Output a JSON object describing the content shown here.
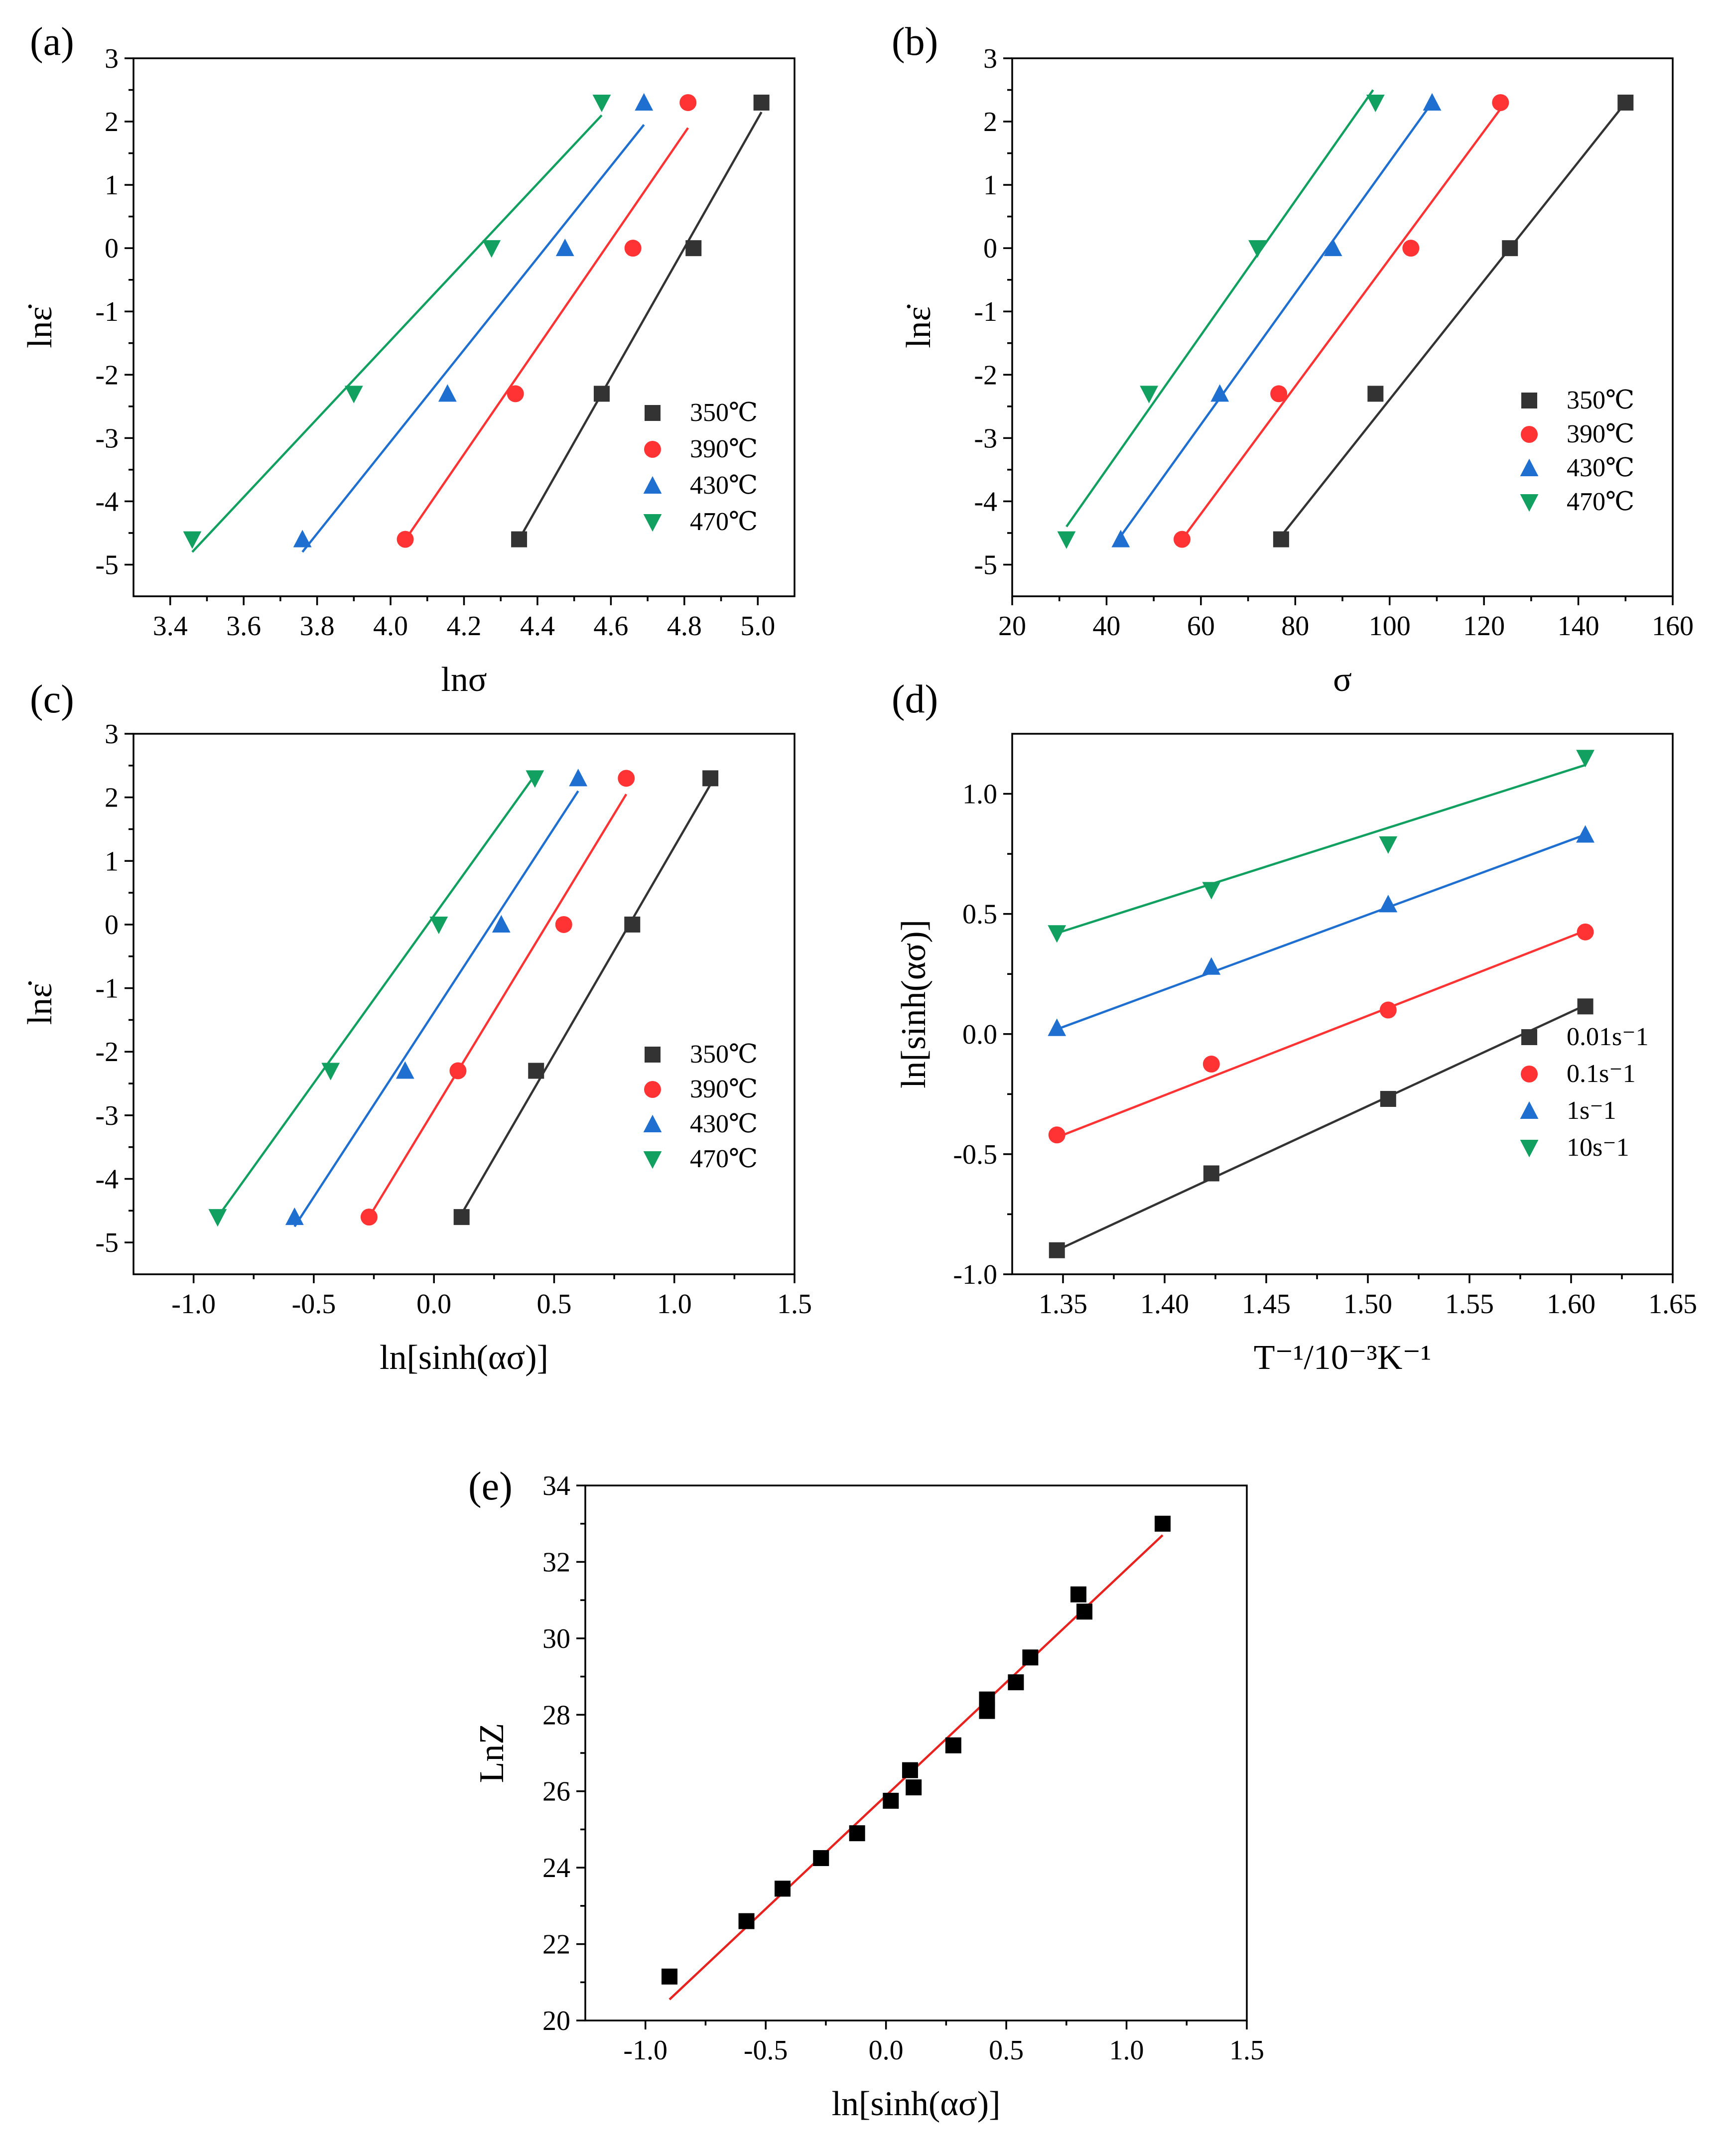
{
  "chart_data": [
    {
      "id": "a",
      "panel_label": "(a)",
      "type": "scatter",
      "xlabel": "lnσ",
      "ylabel": "lnε̇",
      "xlim": [
        3.3,
        5.1
      ],
      "ylim": [
        -5.5,
        3
      ],
      "xticks": [
        3.4,
        3.6,
        3.8,
        4.0,
        4.2,
        4.4,
        4.6,
        4.8,
        5.0
      ],
      "xtick_labels": [
        "3.4",
        "3.6",
        "3.8",
        "4.0",
        "4.2",
        "4.4",
        "4.6",
        "4.8",
        "5.0"
      ],
      "yticks": [
        -5,
        -4,
        -3,
        -2,
        -1,
        0,
        1,
        2,
        3
      ],
      "ytick_labels": [
        "-5",
        "-4",
        "-3",
        "-2",
        "-1",
        "0",
        "1",
        "2",
        "3"
      ],
      "legend_position": "lower-right",
      "series": [
        {
          "name": "350℃",
          "color": "#333333",
          "marker": "square",
          "x": [
            4.35,
            4.575,
            4.825,
            5.01
          ],
          "y": [
            -4.6,
            -2.3,
            0,
            2.3
          ],
          "fit": [
            [
              4.35,
              -4.6
            ],
            [
              5.01,
              2.15
            ]
          ]
        },
        {
          "name": "390℃",
          "color": "#ff3333",
          "marker": "circle",
          "x": [
            4.04,
            4.34,
            4.66,
            4.81
          ],
          "y": [
            -4.6,
            -2.3,
            0,
            2.3
          ],
          "fit": [
            [
              4.035,
              -4.65
            ],
            [
              4.81,
              1.9
            ]
          ]
        },
        {
          "name": "430℃",
          "color": "#1f6fd1",
          "marker": "triangle-up",
          "x": [
            3.76,
            4.155,
            4.475,
            4.69
          ],
          "y": [
            -4.6,
            -2.3,
            0,
            2.3
          ],
          "fit": [
            [
              3.76,
              -4.8
            ],
            [
              4.69,
              1.95
            ]
          ]
        },
        {
          "name": "470℃",
          "color": "#11a060",
          "marker": "triangle-down",
          "x": [
            3.46,
            3.9,
            4.275,
            4.575
          ],
          "y": [
            -4.6,
            -2.3,
            0,
            2.3
          ],
          "fit": [
            [
              3.46,
              -4.8
            ],
            [
              4.575,
              2.1
            ]
          ]
        }
      ]
    },
    {
      "id": "b",
      "panel_label": "(b)",
      "type": "scatter",
      "xlabel": "σ",
      "ylabel": "lnε̇",
      "xlim": [
        20,
        160
      ],
      "ylim": [
        -5.5,
        3
      ],
      "xticks": [
        20,
        40,
        60,
        80,
        100,
        120,
        140,
        160
      ],
      "xtick_labels": [
        "20",
        "40",
        "60",
        "80",
        "100",
        "120",
        "140",
        "160"
      ],
      "yticks": [
        -5,
        -4,
        -3,
        -2,
        -1,
        0,
        1,
        2,
        3
      ],
      "ytick_labels": [
        "-5",
        "-4",
        "-3",
        "-2",
        "-1",
        "0",
        "1",
        "2",
        "3"
      ],
      "legend_position": "lower-right",
      "series": [
        {
          "name": "350℃",
          "color": "#333333",
          "marker": "square",
          "x": [
            77,
            97,
            125.5,
            150
          ],
          "y": [
            -4.6,
            -2.3,
            0,
            2.3
          ],
          "fit": [
            [
              77,
              -4.55
            ],
            [
              150,
              2.3
            ]
          ]
        },
        {
          "name": "390℃",
          "color": "#ff3333",
          "marker": "circle",
          "x": [
            56,
            76.5,
            104.5,
            123.5
          ],
          "y": [
            -4.6,
            -2.3,
            0,
            2.3
          ],
          "fit": [
            [
              56,
              -4.6
            ],
            [
              123.5,
              2.2
            ]
          ]
        },
        {
          "name": "430℃",
          "color": "#1f6fd1",
          "marker": "triangle-up",
          "x": [
            43,
            64,
            88,
            109
          ],
          "y": [
            -4.6,
            -2.3,
            0,
            2.3
          ],
          "fit": [
            [
              43,
              -4.55
            ],
            [
              109,
              2.3
            ]
          ]
        },
        {
          "name": "470℃",
          "color": "#11a060",
          "marker": "triangle-down",
          "x": [
            31.5,
            49,
            72,
            97
          ],
          "y": [
            -4.6,
            -2.3,
            0,
            2.3
          ],
          "fit": [
            [
              31.5,
              -4.4
            ],
            [
              96.5,
              2.5
            ]
          ]
        }
      ]
    },
    {
      "id": "c",
      "panel_label": "(c)",
      "type": "scatter",
      "xlabel": "ln[sinh(ασ)]",
      "ylabel": "lnε̇",
      "xlim": [
        -1.25,
        1.5
      ],
      "ylim": [
        -5.5,
        3
      ],
      "xticks": [
        -1.0,
        -0.5,
        0.0,
        0.5,
        1.0,
        1.5
      ],
      "xtick_labels": [
        "-1.0",
        "-0.5",
        "0.0",
        "0.5",
        "1.0",
        "1.5"
      ],
      "yticks": [
        -5,
        -4,
        -3,
        -2,
        -1,
        0,
        1,
        2,
        3
      ],
      "ytick_labels": [
        "-5",
        "-4",
        "-3",
        "-2",
        "-1",
        "0",
        "1",
        "2",
        "3"
      ],
      "legend_position": "lower-right",
      "series": [
        {
          "name": "350℃",
          "color": "#333333",
          "marker": "square",
          "x": [
            0.115,
            0.425,
            0.825,
            1.15
          ],
          "y": [
            -4.6,
            -2.3,
            0,
            2.3
          ],
          "fit": [
            [
              0.115,
              -4.55
            ],
            [
              1.15,
              2.2
            ]
          ]
        },
        {
          "name": "390℃",
          "color": "#ff3333",
          "marker": "circle",
          "x": [
            -0.27,
            0.1,
            0.54,
            0.8
          ],
          "y": [
            -4.6,
            -2.3,
            0,
            2.3
          ],
          "fit": [
            [
              -0.27,
              -4.6
            ],
            [
              0.8,
              2.05
            ]
          ]
        },
        {
          "name": "430℃",
          "color": "#1f6fd1",
          "marker": "triangle-up",
          "x": [
            -0.58,
            -0.12,
            0.28,
            0.6
          ],
          "y": [
            -4.6,
            -2.3,
            0,
            2.3
          ],
          "fit": [
            [
              -0.58,
              -4.75
            ],
            [
              0.6,
              2.1
            ]
          ]
        },
        {
          "name": "470℃",
          "color": "#11a060",
          "marker": "triangle-down",
          "x": [
            -0.9,
            -0.43,
            0.02,
            0.42
          ],
          "y": [
            -4.6,
            -2.3,
            0,
            2.3
          ],
          "fit": [
            [
              -0.9,
              -4.6
            ],
            [
              0.42,
              2.35
            ]
          ]
        }
      ]
    },
    {
      "id": "d",
      "panel_label": "(d)",
      "type": "scatter",
      "xlabel": "T⁻¹/10⁻³K⁻¹",
      "ylabel": "ln[sinh(ασ)]",
      "xlim": [
        1.325,
        1.65
      ],
      "ylim": [
        -1.0,
        1.25
      ],
      "xticks": [
        1.35,
        1.4,
        1.45,
        1.5,
        1.55,
        1.6,
        1.65
      ],
      "xtick_labels": [
        "1.35",
        "1.40",
        "1.45",
        "1.50",
        "1.55",
        "1.60",
        "1.65"
      ],
      "yticks": [
        -1.0,
        -0.5,
        0.0,
        0.5,
        1.0
      ],
      "ytick_labels": [
        "-1.0",
        "-0.5",
        "0.0",
        "0.5",
        "1.0"
      ],
      "legend_position": "lower-right",
      "series": [
        {
          "name": "0.01s⁻1",
          "color": "#333333",
          "marker": "square",
          "x": [
            1.347,
            1.423,
            1.51,
            1.607
          ],
          "y": [
            -0.9,
            -0.58,
            -0.27,
            0.115
          ],
          "fit": [
            [
              1.347,
              -0.9
            ],
            [
              1.607,
              0.12
            ]
          ]
        },
        {
          "name": "0.1s⁻1",
          "color": "#ff3333",
          "marker": "circle",
          "x": [
            1.347,
            1.423,
            1.51,
            1.607
          ],
          "y": [
            -0.42,
            -0.125,
            0.1,
            0.425
          ],
          "fit": [
            [
              1.347,
              -0.43
            ],
            [
              1.607,
              0.43
            ]
          ]
        },
        {
          "name": "1s⁻1",
          "color": "#1f6fd1",
          "marker": "triangle-up",
          "x": [
            1.347,
            1.423,
            1.51,
            1.607
          ],
          "y": [
            0.025,
            0.28,
            0.54,
            0.83
          ],
          "fit": [
            [
              1.347,
              0.02
            ],
            [
              1.607,
              0.83
            ]
          ]
        },
        {
          "name": "10s⁻1",
          "color": "#11a060",
          "marker": "triangle-down",
          "x": [
            1.347,
            1.423,
            1.51,
            1.607
          ],
          "y": [
            0.42,
            0.6,
            0.79,
            1.15
          ],
          "fit": [
            [
              1.347,
              0.42
            ],
            [
              1.607,
              1.12
            ]
          ]
        }
      ]
    },
    {
      "id": "e",
      "panel_label": "(e)",
      "type": "scatter",
      "xlabel": "ln[sinh(ασ)]",
      "ylabel": "LnZ",
      "xlim": [
        -1.25,
        1.5
      ],
      "ylim": [
        20,
        34
      ],
      "xticks": [
        -1.0,
        -0.5,
        0.0,
        0.5,
        1.0,
        1.5
      ],
      "xtick_labels": [
        "-1.0",
        "-0.5",
        "0.0",
        "0.5",
        "1.0",
        "1.5"
      ],
      "yticks": [
        20,
        22,
        24,
        26,
        28,
        30,
        32,
        34
      ],
      "ytick_labels": [
        "20",
        "22",
        "24",
        "26",
        "28",
        "30",
        "32",
        "34"
      ],
      "legend_position": "none",
      "series": [
        {
          "name": "",
          "color": "#000000",
          "marker": "square",
          "x": [
            -0.9,
            -0.58,
            -0.43,
            -0.27,
            -0.12,
            0.02,
            0.1,
            0.115,
            0.28,
            0.42,
            0.42,
            0.54,
            0.6,
            0.8,
            0.825,
            1.15
          ],
          "y": [
            21.15,
            22.6,
            23.45,
            24.25,
            24.9,
            25.75,
            26.55,
            26.1,
            27.2,
            28.1,
            28.4,
            28.85,
            29.5,
            31.15,
            30.7,
            33.0
          ],
          "fit": [
            [
              -0.9,
              20.55
            ],
            [
              1.15,
              32.7
            ]
          ],
          "fit_color": "#e8231f"
        }
      ]
    }
  ]
}
